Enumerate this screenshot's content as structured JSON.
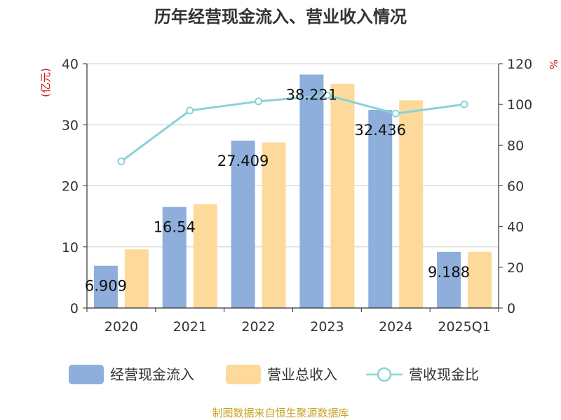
{
  "chart_data": {
    "type": "bar",
    "title": "历年经营现金流入、营业收入情况",
    "categories": [
      "2020",
      "2021",
      "2022",
      "2023",
      "2024",
      "2025Q1"
    ],
    "y_left": {
      "unit": "(亿元)",
      "lim": [
        0,
        40
      ],
      "ticks": [
        "0",
        "10",
        "20",
        "30",
        "40"
      ]
    },
    "y_right": {
      "unit": "%",
      "lim": [
        0,
        120
      ],
      "ticks": [
        "0",
        "20",
        "40",
        "60",
        "80",
        "100",
        "120"
      ]
    },
    "series": [
      {
        "name": "经营现金流入",
        "type": "bar",
        "axis": "left",
        "color": "#8eaedc",
        "values": [
          6.909,
          16.54,
          27.409,
          38.221,
          32.436,
          9.188
        ],
        "labels": [
          "6.909",
          "16.54",
          "27.409",
          "38.221",
          "32.436",
          "9.188"
        ]
      },
      {
        "name": "营业总收入",
        "type": "bar",
        "axis": "left",
        "color": "#fdd99b",
        "values": [
          9.6,
          17.0,
          27.1,
          36.7,
          34.0,
          9.2
        ]
      },
      {
        "name": "营收现金比",
        "type": "line",
        "axis": "right",
        "color": "#88d3d7",
        "values": [
          72,
          97,
          101.5,
          104.5,
          95.5,
          100
        ]
      }
    ],
    "grid": true,
    "legend": "bottom"
  },
  "source": "制图数据来自恒生聚源数据库"
}
